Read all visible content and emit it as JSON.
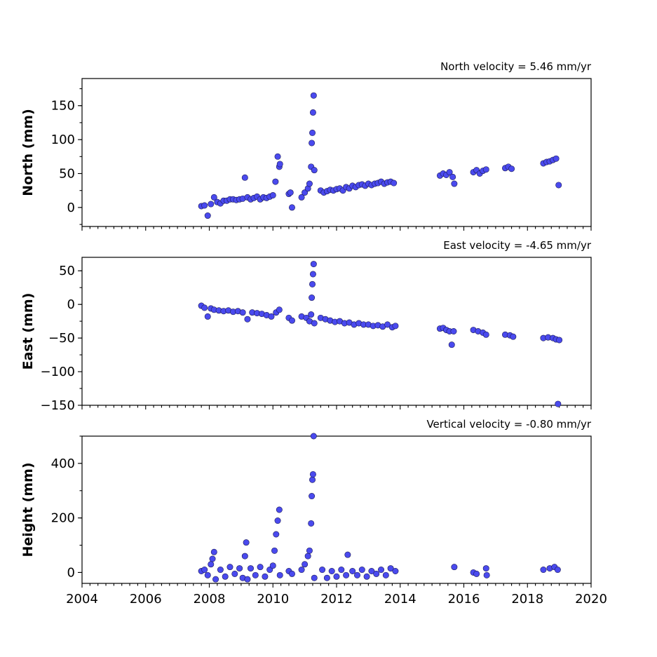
{
  "chart_data": [
    {
      "type": "scatter",
      "title": "North velocity = 5.46 mm/yr",
      "ylabel": "North (mm)",
      "xlabel": "",
      "xlim": [
        2004,
        2020
      ],
      "ylim": [
        -28,
        190
      ],
      "yticks": [
        0,
        50,
        100,
        150
      ],
      "color": "#4a4aee",
      "series": [
        {
          "x": [
            2007.75,
            2007.85,
            2007.95,
            2008.05,
            2008.15,
            2008.25,
            2008.35,
            2008.45,
            2008.55,
            2008.65,
            2008.75,
            2008.85,
            2008.95,
            2009.05,
            2009.12,
            2009.2,
            2009.3,
            2009.4,
            2009.5,
            2009.6,
            2009.7,
            2009.8,
            2009.9,
            2010.0,
            2010.08,
            2010.15,
            2010.2,
            2010.22,
            2010.5,
            2010.55,
            2010.6,
            2010.9,
            2011.0,
            2011.1,
            2011.15,
            2011.2,
            2011.22,
            2011.24,
            2011.26,
            2011.28,
            2011.3,
            2011.5,
            2011.6,
            2011.7,
            2011.8,
            2011.9,
            2012.0,
            2012.1,
            2012.2,
            2012.3,
            2012.4,
            2012.5,
            2012.6,
            2012.7,
            2012.8,
            2012.9,
            2013.0,
            2013.1,
            2013.2,
            2013.3,
            2013.4,
            2013.5,
            2013.6,
            2013.7,
            2013.8,
            2015.25,
            2015.35,
            2015.45,
            2015.55,
            2015.65,
            2015.7,
            2016.3,
            2016.4,
            2016.5,
            2016.6,
            2016.7,
            2017.3,
            2017.4,
            2017.5,
            2018.5,
            2018.6,
            2018.7,
            2018.8,
            2018.9,
            2018.98
          ],
          "y": [
            2,
            3,
            -12,
            5,
            15,
            8,
            6,
            10,
            10,
            12,
            12,
            11,
            12,
            13,
            44,
            15,
            12,
            14,
            16,
            12,
            15,
            14,
            16,
            18,
            38,
            75,
            60,
            64,
            20,
            22,
            0,
            15,
            22,
            28,
            35,
            60,
            95,
            110,
            140,
            165,
            55,
            25,
            22,
            24,
            26,
            25,
            27,
            28,
            25,
            30,
            28,
            32,
            30,
            33,
            34,
            32,
            35,
            33,
            35,
            36,
            38,
            35,
            37,
            38,
            36,
            47,
            50,
            48,
            52,
            45,
            35,
            52,
            55,
            50,
            54,
            56,
            58,
            60,
            57,
            65,
            67,
            68,
            70,
            72,
            33
          ]
        }
      ]
    },
    {
      "type": "scatter",
      "title": "East velocity = -4.65 mm/yr",
      "ylabel": "East (mm)",
      "xlabel": "",
      "xlim": [
        2004,
        2020
      ],
      "ylim": [
        -150,
        70
      ],
      "yticks": [
        -150,
        -100,
        -50,
        0,
        50
      ],
      "color": "#4a4aee",
      "series": [
        {
          "x": [
            2007.75,
            2007.85,
            2007.95,
            2008.05,
            2008.15,
            2008.3,
            2008.45,
            2008.6,
            2008.75,
            2008.9,
            2009.05,
            2009.2,
            2009.35,
            2009.5,
            2009.65,
            2009.8,
            2009.95,
            2010.1,
            2010.2,
            2010.5,
            2010.6,
            2010.9,
            2011.05,
            2011.15,
            2011.2,
            2011.22,
            2011.24,
            2011.26,
            2011.28,
            2011.3,
            2011.5,
            2011.65,
            2011.8,
            2011.95,
            2012.1,
            2012.25,
            2012.4,
            2012.55,
            2012.7,
            2012.85,
            2013.0,
            2013.15,
            2013.3,
            2013.45,
            2013.6,
            2013.75,
            2013.85,
            2015.25,
            2015.35,
            2015.45,
            2015.55,
            2015.62,
            2015.68,
            2016.3,
            2016.45,
            2016.6,
            2016.7,
            2017.3,
            2017.45,
            2017.55,
            2018.5,
            2018.65,
            2018.8,
            2018.9,
            2018.96,
            2019.0
          ],
          "y": [
            -2,
            -5,
            -18,
            -6,
            -8,
            -9,
            -10,
            -9,
            -11,
            -10,
            -12,
            -22,
            -12,
            -13,
            -14,
            -16,
            -18,
            -12,
            -8,
            -20,
            -24,
            -18,
            -20,
            -25,
            -15,
            10,
            30,
            45,
            60,
            -28,
            -20,
            -22,
            -24,
            -26,
            -25,
            -28,
            -27,
            -30,
            -28,
            -30,
            -30,
            -32,
            -31,
            -33,
            -30,
            -34,
            -32,
            -36,
            -35,
            -38,
            -40,
            -60,
            -40,
            -38,
            -40,
            -42,
            -45,
            -45,
            -46,
            -48,
            -50,
            -49,
            -50,
            -52,
            -148,
            -53
          ]
        }
      ]
    },
    {
      "type": "scatter",
      "title": "Vertical velocity = -0.80 mm/yr",
      "ylabel": "Height (mm)",
      "xlabel": "",
      "xlim": [
        2004,
        2020
      ],
      "ylim": [
        -40,
        500
      ],
      "yticks": [
        0,
        200,
        400
      ],
      "xticks": [
        2004,
        2006,
        2008,
        2010,
        2012,
        2014,
        2016,
        2018,
        2020
      ],
      "color": "#4a4aee",
      "series": [
        {
          "x": [
            2007.75,
            2007.85,
            2007.95,
            2008.05,
            2008.1,
            2008.15,
            2008.2,
            2008.35,
            2008.5,
            2008.65,
            2008.8,
            2008.95,
            2009.05,
            2009.12,
            2009.16,
            2009.2,
            2009.3,
            2009.45,
            2009.6,
            2009.75,
            2009.9,
            2010.0,
            2010.05,
            2010.1,
            2010.15,
            2010.2,
            2010.22,
            2010.5,
            2010.6,
            2010.9,
            2011.0,
            2011.1,
            2011.15,
            2011.2,
            2011.22,
            2011.24,
            2011.26,
            2011.28,
            2011.3,
            2011.55,
            2011.7,
            2011.85,
            2012.0,
            2012.15,
            2012.3,
            2012.35,
            2012.5,
            2012.65,
            2012.8,
            2012.95,
            2013.1,
            2013.25,
            2013.4,
            2013.55,
            2013.7,
            2013.85,
            2015.7,
            2016.3,
            2016.4,
            2016.7,
            2016.72,
            2018.5,
            2018.7,
            2018.85,
            2018.95
          ],
          "y": [
            5,
            10,
            -10,
            30,
            50,
            75,
            -25,
            10,
            -15,
            20,
            -5,
            15,
            -20,
            60,
            110,
            -25,
            15,
            -10,
            20,
            -15,
            10,
            25,
            80,
            140,
            190,
            230,
            -10,
            5,
            -5,
            10,
            30,
            60,
            80,
            180,
            280,
            340,
            360,
            500,
            -20,
            10,
            -20,
            5,
            -15,
            10,
            -10,
            65,
            5,
            -10,
            10,
            -15,
            5,
            -5,
            10,
            -10,
            15,
            5,
            20,
            0,
            -5,
            15,
            -10,
            10,
            15,
            20,
            10
          ]
        }
      ]
    }
  ]
}
